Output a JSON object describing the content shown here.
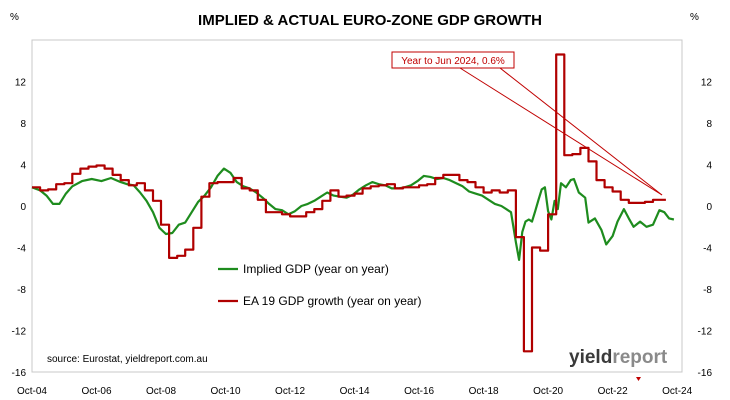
{
  "chart_data": {
    "type": "line",
    "title": "IMPLIED & ACTUAL EURO-ZONE GDP GROWTH",
    "left_unit": "%",
    "right_unit": "%",
    "ylim": [
      -16,
      16
    ],
    "yticks": [
      -16,
      -12,
      -8,
      -4,
      0,
      4,
      8,
      12
    ],
    "xlim": [
      2004.75,
      2024.9
    ],
    "xticks": [
      {
        "x": 2004.75,
        "label": "Oct-04"
      },
      {
        "x": 2006.75,
        "label": "Oct-06"
      },
      {
        "x": 2008.75,
        "label": "Oct-08"
      },
      {
        "x": 2010.75,
        "label": "Oct-10"
      },
      {
        "x": 2012.75,
        "label": "Oct-12"
      },
      {
        "x": 2014.75,
        "label": "Oct-14"
      },
      {
        "x": 2016.75,
        "label": "Oct-16"
      },
      {
        "x": 2018.75,
        "label": "Oct-18"
      },
      {
        "x": 2020.75,
        "label": "Oct-20"
      },
      {
        "x": 2022.75,
        "label": "Oct-22"
      },
      {
        "x": 2024.75,
        "label": "Oct-24"
      }
    ],
    "series": [
      {
        "name": "Implied GDP (year on year)",
        "color": "#1e8c1e",
        "style": "line",
        "points": [
          [
            2004.75,
            1.8
          ],
          [
            2005.0,
            1.5
          ],
          [
            2005.2,
            1.0
          ],
          [
            2005.4,
            0.2
          ],
          [
            2005.6,
            0.2
          ],
          [
            2005.8,
            1.2
          ],
          [
            2006.0,
            1.9
          ],
          [
            2006.3,
            2.4
          ],
          [
            2006.6,
            2.6
          ],
          [
            2006.9,
            2.4
          ],
          [
            2007.2,
            2.7
          ],
          [
            2007.5,
            2.3
          ],
          [
            2007.7,
            2.1
          ],
          [
            2007.9,
            2.0
          ],
          [
            2008.1,
            1.3
          ],
          [
            2008.3,
            0.5
          ],
          [
            2008.5,
            -0.6
          ],
          [
            2008.7,
            -2.1
          ],
          [
            2008.9,
            -2.7
          ],
          [
            2009.1,
            -2.6
          ],
          [
            2009.3,
            -1.8
          ],
          [
            2009.5,
            -1.6
          ],
          [
            2009.7,
            -0.6
          ],
          [
            2009.9,
            0.4
          ],
          [
            2010.1,
            1.0
          ],
          [
            2010.3,
            1.8
          ],
          [
            2010.5,
            2.9
          ],
          [
            2010.7,
            3.6
          ],
          [
            2010.9,
            3.2
          ],
          [
            2011.1,
            2.3
          ],
          [
            2011.3,
            1.9
          ],
          [
            2011.5,
            1.7
          ],
          [
            2011.7,
            1.3
          ],
          [
            2011.9,
            0.8
          ],
          [
            2012.1,
            0.2
          ],
          [
            2012.3,
            -0.3
          ],
          [
            2012.5,
            -0.4
          ],
          [
            2012.7,
            -0.8
          ],
          [
            2012.9,
            -0.5
          ],
          [
            2013.1,
            0.0
          ],
          [
            2013.3,
            0.2
          ],
          [
            2013.5,
            0.5
          ],
          [
            2013.7,
            0.9
          ],
          [
            2013.9,
            1.3
          ],
          [
            2014.1,
            1.0
          ],
          [
            2014.3,
            0.9
          ],
          [
            2014.5,
            0.8
          ],
          [
            2014.7,
            1.1
          ],
          [
            2014.9,
            1.6
          ],
          [
            2015.1,
            2.0
          ],
          [
            2015.3,
            2.3
          ],
          [
            2015.5,
            2.1
          ],
          [
            2015.7,
            2.0
          ],
          [
            2015.9,
            1.7
          ],
          [
            2016.1,
            1.7
          ],
          [
            2016.3,
            1.8
          ],
          [
            2016.5,
            2.0
          ],
          [
            2016.7,
            2.4
          ],
          [
            2016.9,
            2.9
          ],
          [
            2017.1,
            2.8
          ],
          [
            2017.3,
            2.6
          ],
          [
            2017.5,
            2.7
          ],
          [
            2017.7,
            2.5
          ],
          [
            2017.9,
            2.2
          ],
          [
            2018.1,
            1.9
          ],
          [
            2018.3,
            1.4
          ],
          [
            2018.5,
            1.2
          ],
          [
            2018.7,
            1.0
          ],
          [
            2018.9,
            0.6
          ],
          [
            2019.1,
            0.2
          ],
          [
            2019.3,
            0.0
          ],
          [
            2019.45,
            -0.3
          ],
          [
            2019.6,
            -0.6
          ],
          [
            2019.75,
            -3.5
          ],
          [
            2019.85,
            -5.2
          ],
          [
            2019.95,
            -2.5
          ],
          [
            2020.05,
            -1.5
          ],
          [
            2020.15,
            -1.3
          ],
          [
            2020.25,
            -1.5
          ],
          [
            2020.35,
            -0.5
          ],
          [
            2020.45,
            0.6
          ],
          [
            2020.55,
            1.6
          ],
          [
            2020.65,
            1.8
          ],
          [
            2020.75,
            -0.5
          ],
          [
            2020.85,
            -1.3
          ],
          [
            2020.95,
            0.5
          ],
          [
            2021.05,
            -0.3
          ],
          [
            2021.15,
            2.2
          ],
          [
            2021.3,
            1.8
          ],
          [
            2021.45,
            2.5
          ],
          [
            2021.55,
            2.6
          ],
          [
            2021.7,
            1.3
          ],
          [
            2021.9,
            0.8
          ],
          [
            2022.0,
            -1.6
          ],
          [
            2022.2,
            -1.2
          ],
          [
            2022.4,
            -2.3
          ],
          [
            2022.55,
            -3.7
          ],
          [
            2022.75,
            -2.9
          ],
          [
            2022.9,
            -1.5
          ],
          [
            2023.1,
            -0.3
          ],
          [
            2023.25,
            -1.2
          ],
          [
            2023.4,
            -2.0
          ],
          [
            2023.6,
            -1.5
          ],
          [
            2023.8,
            -2.0
          ],
          [
            2024.0,
            -1.8
          ],
          [
            2024.2,
            -0.4
          ],
          [
            2024.35,
            -0.6
          ],
          [
            2024.5,
            -1.2
          ],
          [
            2024.65,
            -1.3
          ]
        ]
      },
      {
        "name": "EA 19 GDP growth (year on year)",
        "color": "#b00000",
        "style": "step",
        "points": [
          [
            2004.75,
            1.8
          ],
          [
            2005.0,
            1.5
          ],
          [
            2005.25,
            1.6
          ],
          [
            2005.5,
            2.1
          ],
          [
            2005.75,
            2.2
          ],
          [
            2006.0,
            3.1
          ],
          [
            2006.25,
            3.6
          ],
          [
            2006.5,
            3.8
          ],
          [
            2006.75,
            3.9
          ],
          [
            2007.0,
            3.6
          ],
          [
            2007.25,
            3.0
          ],
          [
            2007.5,
            2.5
          ],
          [
            2007.75,
            2.0
          ],
          [
            2008.0,
            2.2
          ],
          [
            2008.25,
            1.5
          ],
          [
            2008.5,
            0.5
          ],
          [
            2008.75,
            -1.8
          ],
          [
            2009.0,
            -5.0
          ],
          [
            2009.25,
            -4.8
          ],
          [
            2009.5,
            -4.2
          ],
          [
            2009.75,
            -2.1
          ],
          [
            2010.0,
            0.9
          ],
          [
            2010.25,
            2.2
          ],
          [
            2010.5,
            2.3
          ],
          [
            2010.75,
            2.3
          ],
          [
            2011.0,
            2.7
          ],
          [
            2011.25,
            1.7
          ],
          [
            2011.5,
            1.5
          ],
          [
            2011.75,
            0.6
          ],
          [
            2012.0,
            -0.6
          ],
          [
            2012.25,
            -0.6
          ],
          [
            2012.5,
            -0.8
          ],
          [
            2012.75,
            -1.0
          ],
          [
            2013.0,
            -1.0
          ],
          [
            2013.25,
            -0.6
          ],
          [
            2013.5,
            -0.3
          ],
          [
            2013.75,
            0.5
          ],
          [
            2014.0,
            1.5
          ],
          [
            2014.25,
            0.9
          ],
          [
            2014.5,
            1.0
          ],
          [
            2014.75,
            1.2
          ],
          [
            2015.0,
            1.7
          ],
          [
            2015.25,
            1.9
          ],
          [
            2015.5,
            2.0
          ],
          [
            2015.75,
            2.1
          ],
          [
            2016.0,
            1.7
          ],
          [
            2016.25,
            1.8
          ],
          [
            2016.5,
            1.8
          ],
          [
            2016.75,
            2.0
          ],
          [
            2017.0,
            2.1
          ],
          [
            2017.25,
            2.7
          ],
          [
            2017.5,
            3.0
          ],
          [
            2017.75,
            3.0
          ],
          [
            2018.0,
            2.5
          ],
          [
            2018.25,
            2.3
          ],
          [
            2018.5,
            1.8
          ],
          [
            2018.75,
            1.3
          ],
          [
            2019.0,
            1.5
          ],
          [
            2019.25,
            1.3
          ],
          [
            2019.5,
            1.5
          ],
          [
            2019.75,
            -3.0
          ],
          [
            2020.0,
            -14.0
          ],
          [
            2020.25,
            -4.0
          ],
          [
            2020.5,
            -4.3
          ],
          [
            2020.75,
            -0.8
          ],
          [
            2021.0,
            14.6
          ],
          [
            2021.25,
            4.9
          ],
          [
            2021.5,
            5.0
          ],
          [
            2021.75,
            5.6
          ],
          [
            2022.0,
            4.3
          ],
          [
            2022.25,
            2.5
          ],
          [
            2022.5,
            1.8
          ],
          [
            2022.75,
            1.4
          ],
          [
            2023.0,
            0.6
          ],
          [
            2023.25,
            0.3
          ],
          [
            2023.5,
            0.3
          ],
          [
            2023.75,
            0.4
          ],
          [
            2024.0,
            0.6
          ],
          [
            2024.4,
            0.6
          ]
        ]
      }
    ],
    "annotation": {
      "text": "Year to Jun 2024, 0.6%"
    },
    "source": "source: Eurostat, yieldreport.com.au",
    "brand": {
      "part1": "yield",
      "part2": "report"
    },
    "grid": false,
    "legend": "inside-center"
  }
}
